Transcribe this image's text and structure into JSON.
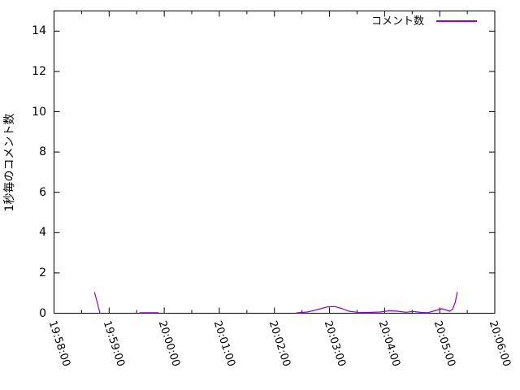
{
  "chart_data": {
    "type": "line",
    "title": "",
    "xlabel": "",
    "ylabel": "1秒毎のコメント数",
    "legend_label": "コメント数",
    "legend_position": "top-right-inside",
    "grid": false,
    "background_color": "#ffffff",
    "axis_color": "#000000",
    "x_axis": {
      "start": "19:58:00",
      "end": "20:06:00",
      "major_tick_seconds": 60,
      "minor_tick_seconds": 30,
      "tick_labels": [
        "19:58:00",
        "19:59:00",
        "20:00:00",
        "20:01:00",
        "20:02:00",
        "20:03:00",
        "20:04:00",
        "20:05:00",
        "20:06:00"
      ]
    },
    "y_axis": {
      "min": 0,
      "max": 15,
      "tick_step": 2,
      "tick_labels": [
        "0",
        "2",
        "4",
        "6",
        "8",
        "10",
        "12",
        "14"
      ]
    },
    "series": [
      {
        "name": "コメント数",
        "color": "#9400d3",
        "segments": [
          [
            [
              "19:58:44",
              1.05
            ],
            [
              "19:58:47",
              0.55
            ],
            [
              "19:58:50",
              0.0
            ]
          ],
          [
            [
              "19:59:33",
              0.03
            ],
            [
              "19:59:54",
              0.03
            ]
          ],
          [
            [
              "20:02:24",
              0.02
            ],
            [
              "20:02:36",
              0.06
            ],
            [
              "20:02:47",
              0.18
            ],
            [
              "20:02:58",
              0.32
            ],
            [
              "20:03:06",
              0.33
            ],
            [
              "20:03:14",
              0.22
            ],
            [
              "20:03:21",
              0.1
            ],
            [
              "20:03:30",
              0.05
            ],
            [
              "20:03:43",
              0.04
            ],
            [
              "20:03:55",
              0.06
            ],
            [
              "20:04:05",
              0.12
            ],
            [
              "20:04:14",
              0.1
            ],
            [
              "20:04:23",
              0.05
            ],
            [
              "20:04:31",
              0.09
            ],
            [
              "20:04:40",
              0.04
            ],
            [
              "20:04:47",
              0.03
            ],
            [
              "20:04:56",
              0.14
            ],
            [
              "20:05:02",
              0.22
            ],
            [
              "20:05:07",
              0.16
            ],
            [
              "20:05:11",
              0.1
            ],
            [
              "20:05:14",
              0.2
            ],
            [
              "20:05:17",
              0.55
            ],
            [
              "20:05:19",
              1.05
            ]
          ]
        ]
      }
    ]
  }
}
